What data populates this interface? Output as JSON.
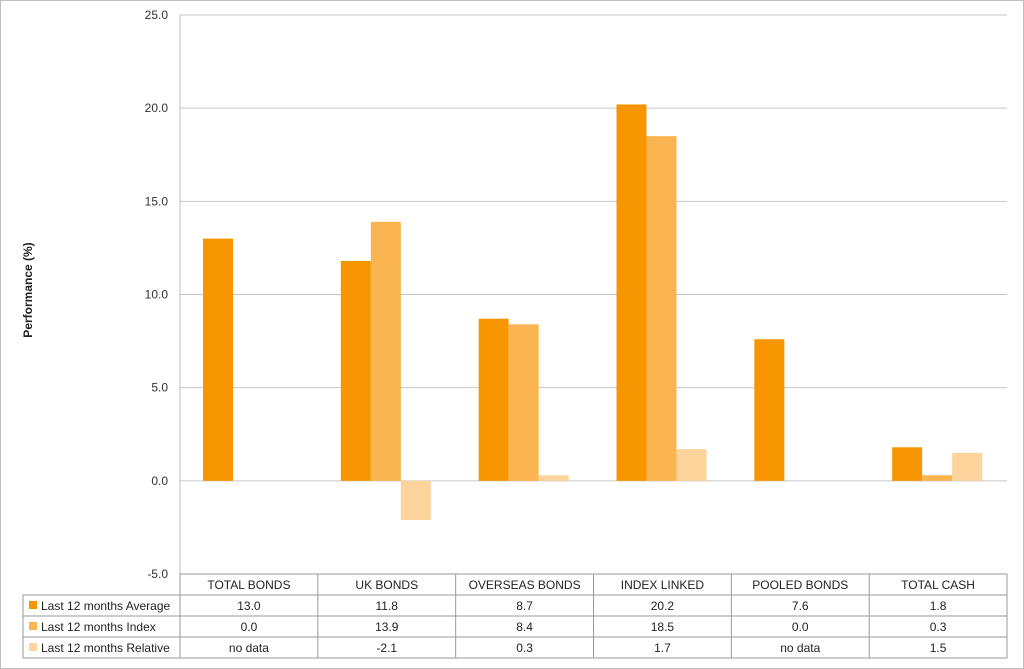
{
  "chart_data": {
    "type": "bar",
    "ylabel": "Performance (%)",
    "ylim": [
      -5.0,
      25.0
    ],
    "yticks": [
      "25.0",
      "20.0",
      "15.0",
      "10.0",
      "5.0",
      "0.0",
      "-5.0"
    ],
    "categories": [
      "TOTAL BONDS",
      "UK BONDS",
      "OVERSEAS BONDS",
      "INDEX LINKED",
      "POOLED BONDS",
      "TOTAL CASH"
    ],
    "series": [
      {
        "name": "Last 12 months Average",
        "color": "#F79600",
        "values": [
          13.0,
          11.8,
          8.7,
          20.2,
          7.6,
          1.8
        ],
        "labels": [
          "13.0",
          "11.8",
          "8.7",
          "20.2",
          "7.6",
          "1.8"
        ]
      },
      {
        "name": "Last 12 months Index",
        "color": "#FBB550",
        "values": [
          0.0,
          13.9,
          8.4,
          18.5,
          0.0,
          0.3
        ],
        "labels": [
          "0.0",
          "13.9",
          "8.4",
          "18.5",
          "0.0",
          "0.3"
        ]
      },
      {
        "name": "Last 12 months Relative",
        "color": "#FCD49C",
        "values": [
          null,
          -2.1,
          0.3,
          1.7,
          null,
          1.5
        ],
        "labels": [
          "no data",
          "-2.1",
          "0.3",
          "1.7",
          "no data",
          "1.5"
        ]
      }
    ],
    "grid": true,
    "legend": "data-table"
  }
}
